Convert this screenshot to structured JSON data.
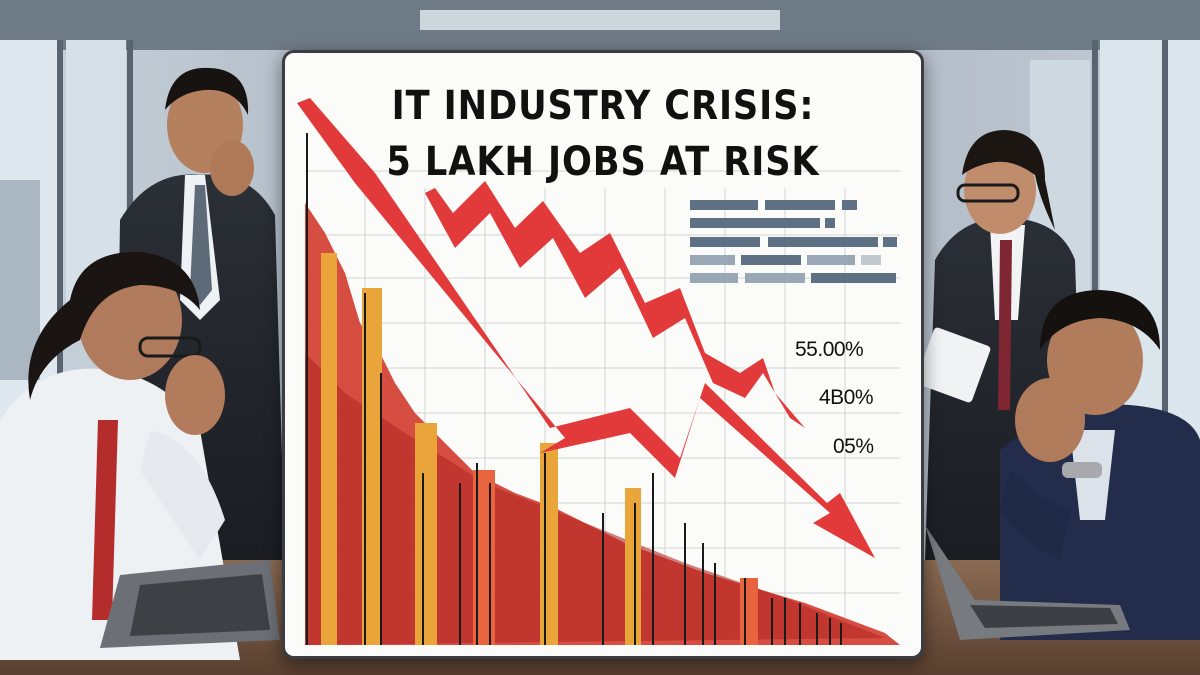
{
  "headline": {
    "line1": "IT INDUSTRY CRISIS:",
    "line2": "5 LAKH JOBS AT RISK"
  },
  "percentages": [
    "55.00%",
    "4B0%",
    "05%"
  ],
  "colors": {
    "arrow": "#e23a3a",
    "bars_primary": "#cf3a2c",
    "bars_secondary": "#e9a53a",
    "board": "#fbfbfa",
    "legend_bars": "#5e7184"
  },
  "icons": [
    "down-trend-arrow"
  ]
}
